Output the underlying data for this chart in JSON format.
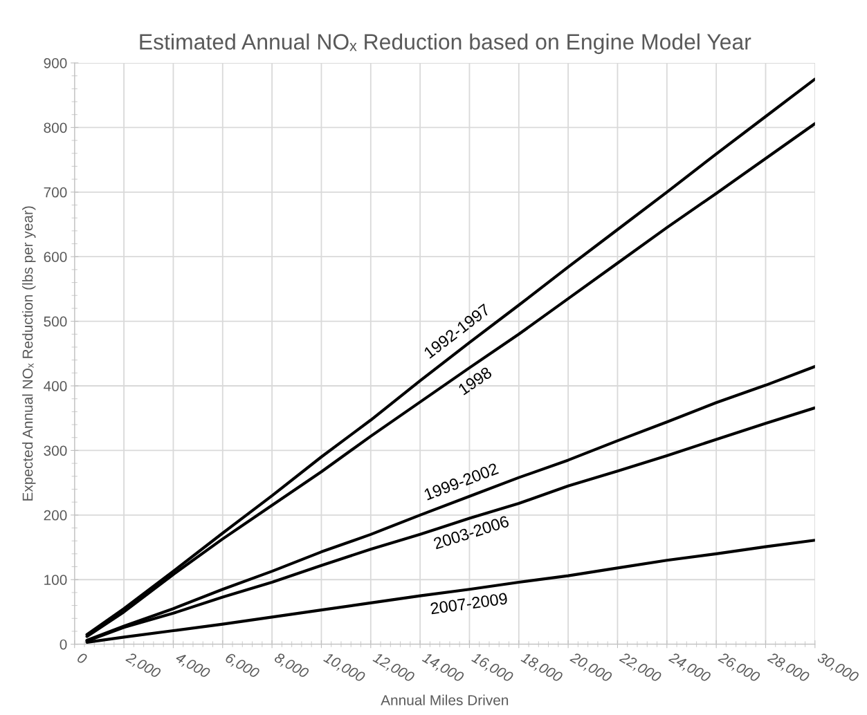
{
  "chart_data": {
    "type": "line",
    "title": "Estimated Annual NOₓ Reduction based on Engine Model Year",
    "xlabel": "Annual Miles Driven",
    "ylabel": "Expected Annual NOₓ Reduction (lbs per year)",
    "x": [
      500,
      2000,
      4000,
      6000,
      8000,
      10000,
      12000,
      14000,
      16000,
      18000,
      20000,
      22000,
      24000,
      26000,
      28000,
      30000
    ],
    "series": [
      {
        "name": "1992-1997",
        "color": "#000000",
        "values": [
          15,
          55,
          113,
          172,
          230,
          290,
          347,
          408,
          467,
          525,
          584,
          642,
          700,
          759,
          817,
          875
        ]
      },
      {
        "name": "1998",
        "color": "#000000",
        "values": [
          12,
          50,
          108,
          163,
          215,
          267,
          322,
          375,
          428,
          480,
          535,
          590,
          645,
          698,
          752,
          806
        ]
      },
      {
        "name": "1999-2002",
        "color": "#000000",
        "values": [
          6,
          28,
          55,
          85,
          113,
          143,
          170,
          200,
          229,
          258,
          285,
          315,
          344,
          374,
          401,
          430
        ]
      },
      {
        "name": "2003-2006",
        "color": "#000000",
        "values": [
          5,
          26,
          48,
          73,
          96,
          122,
          147,
          170,
          195,
          218,
          245,
          268,
          292,
          317,
          342,
          366
        ]
      },
      {
        "name": "2007-2009",
        "color": "#000000",
        "values": [
          3,
          11,
          21,
          31,
          42,
          53,
          64,
          75,
          85,
          96,
          106,
          118,
          130,
          140,
          151,
          161
        ]
      }
    ],
    "xlim": [
      0,
      30000
    ],
    "xticks": [
      {
        "value": 0,
        "label": "0"
      },
      {
        "value": 2000,
        "label": "2,000"
      },
      {
        "value": 4000,
        "label": "4,000"
      },
      {
        "value": 6000,
        "label": "6,000"
      },
      {
        "value": 8000,
        "label": "8,000"
      },
      {
        "value": 10000,
        "label": "10,000"
      },
      {
        "value": 12000,
        "label": "12,000"
      },
      {
        "value": 14000,
        "label": "14,000"
      },
      {
        "value": 16000,
        "label": "16,000"
      },
      {
        "value": 18000,
        "label": "18,000"
      },
      {
        "value": 20000,
        "label": "20,000"
      },
      {
        "value": 22000,
        "label": "22,000"
      },
      {
        "value": 24000,
        "label": "24,000"
      },
      {
        "value": 26000,
        "label": "26,000"
      },
      {
        "value": 28000,
        "label": "28,000"
      },
      {
        "value": 30000,
        "label": "30,000"
      }
    ],
    "ylim": [
      0,
      900
    ],
    "yticks": [
      0,
      100,
      200,
      300,
      400,
      500,
      600,
      700,
      800,
      900
    ],
    "grid": true,
    "legend": false,
    "marker": "none",
    "line_style": "solid"
  }
}
